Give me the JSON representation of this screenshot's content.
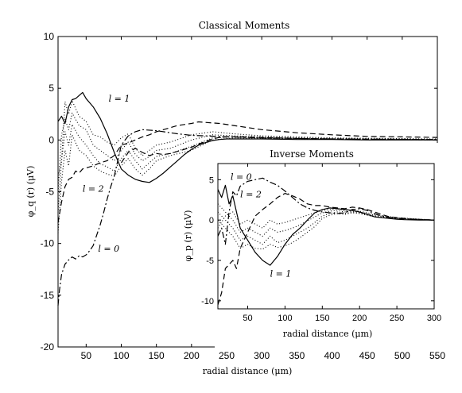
{
  "chart_data": [
    {
      "type": "line",
      "title": "Classical Moments",
      "xlabel": "radial distance (μm)",
      "ylabel": "φ_q (r) (μV)",
      "xlim": [
        10,
        550
      ],
      "ylim": [
        -20,
        10
      ],
      "xticks": [
        50,
        100,
        150,
        200,
        250,
        300,
        350,
        400,
        450,
        500,
        550
      ],
      "yticks": [
        -20,
        -15,
        -10,
        -5,
        0,
        5,
        10
      ],
      "grid": false,
      "annotations": [
        {
          "text": "l = 1",
          "x": 82,
          "y": 3.7
        },
        {
          "text": "l = 2",
          "x": 45,
          "y": -5.0
        },
        {
          "text": "l = 0",
          "x": 67,
          "y": -10.8
        }
      ],
      "series": [
        {
          "style": "solid",
          "x": [
            10,
            15,
            20,
            25,
            30,
            35,
            40,
            45,
            50,
            60,
            70,
            80,
            90,
            100,
            110,
            120,
            130,
            140,
            150,
            160,
            170,
            180,
            190,
            200,
            210,
            220,
            230,
            240,
            250,
            275,
            300,
            350,
            400,
            450,
            500,
            550
          ],
          "y": [
            1.8,
            2.3,
            1.6,
            3.2,
            3.9,
            4.0,
            4.3,
            4.6,
            4.0,
            3.2,
            2.1,
            0.6,
            -1.2,
            -2.8,
            -3.4,
            -3.8,
            -4.0,
            -4.1,
            -3.7,
            -3.2,
            -2.6,
            -2.0,
            -1.4,
            -0.9,
            -0.5,
            -0.25,
            -0.05,
            0.05,
            0.1,
            0.1,
            0.1,
            0.05,
            0.05,
            0.0,
            0.0,
            0.0
          ]
        },
        {
          "style": "dashdot",
          "x": [
            10,
            12,
            15,
            20,
            25,
            30,
            35,
            40,
            45,
            50,
            55,
            60,
            65,
            70,
            75,
            80,
            85,
            90,
            95,
            100,
            110,
            120,
            130,
            150,
            180,
            200,
            220,
            250,
            300,
            400,
            550
          ],
          "y": [
            -16.0,
            -14.5,
            -13.0,
            -12.0,
            -11.6,
            -11.3,
            -11.5,
            -11.2,
            -11.3,
            -11.1,
            -10.7,
            -10.2,
            -9.2,
            -8.2,
            -7.0,
            -5.7,
            -4.5,
            -3.5,
            -2.0,
            -0.5,
            0.4,
            0.8,
            1.0,
            0.9,
            0.6,
            0.45,
            0.4,
            0.3,
            0.2,
            0.1,
            0.05
          ]
        },
        {
          "style": "dashed",
          "x": [
            10,
            15,
            20,
            25,
            30,
            35,
            40,
            45,
            50,
            60,
            70,
            80,
            90,
            100,
            110,
            120,
            130,
            140,
            150,
            160,
            170,
            180,
            190,
            200,
            210,
            220,
            240,
            260,
            300,
            350,
            400,
            450,
            500,
            550
          ],
          "y": [
            -8.0,
            -6.0,
            -4.5,
            -3.8,
            -3.6,
            -3.0,
            -3.2,
            -2.8,
            -2.7,
            -2.5,
            -2.2,
            -2.0,
            -1.5,
            -0.5,
            -0.3,
            0.0,
            0.3,
            0.5,
            0.8,
            1.0,
            1.2,
            1.4,
            1.5,
            1.6,
            1.75,
            1.7,
            1.6,
            1.4,
            1.0,
            0.7,
            0.5,
            0.35,
            0.3,
            0.25
          ]
        },
        {
          "style": "dashed",
          "x": [
            100,
            110,
            120,
            130,
            140,
            150,
            160,
            170,
            180,
            190,
            200,
            210,
            220,
            230,
            240,
            250,
            270,
            300,
            350,
            400,
            450,
            500,
            550
          ],
          "y": [
            -2.2,
            -1.2,
            -0.8,
            -1.2,
            -1.5,
            -1.3,
            -1.4,
            -1.3,
            -1.1,
            -0.9,
            -0.7,
            -0.4,
            -0.15,
            0.1,
            0.25,
            0.3,
            0.3,
            0.25,
            0.15,
            0.1,
            0.05,
            0.05,
            0.0
          ]
        },
        {
          "style": "dotted",
          "x": [
            10,
            15,
            20,
            25,
            30,
            40,
            50,
            60,
            70,
            80,
            90,
            100,
            110,
            120,
            130,
            140,
            150,
            170,
            200,
            230,
            260,
            300,
            400,
            550
          ],
          "y": [
            -3.5,
            -2.0,
            3.7,
            2.5,
            3.8,
            2.3,
            1.8,
            0.5,
            0.3,
            -0.2,
            -0.5,
            0.2,
            0.6,
            -0.8,
            -1.5,
            -1.0,
            -0.5,
            -0.2,
            0.5,
            0.8,
            0.6,
            0.4,
            0.2,
            0.1
          ]
        },
        {
          "style": "dotted",
          "x": [
            10,
            15,
            20,
            25,
            30,
            40,
            50,
            60,
            70,
            80,
            90,
            100,
            110,
            120,
            130,
            140,
            150,
            170,
            200,
            230,
            260,
            300,
            400,
            550
          ],
          "y": [
            -5.0,
            0.5,
            2.0,
            1.0,
            2.6,
            1.4,
            1.0,
            -0.5,
            -1.0,
            -1.5,
            -2.0,
            -1.0,
            -0.2,
            -1.4,
            -2.0,
            -1.6,
            -1.0,
            -0.8,
            0.0,
            0.5,
            0.4,
            0.3,
            0.15,
            0.05
          ]
        },
        {
          "style": "dotted",
          "x": [
            10,
            15,
            20,
            25,
            30,
            40,
            50,
            60,
            70,
            80,
            90,
            100,
            110,
            120,
            130,
            140,
            150,
            170,
            200,
            230,
            260,
            300,
            400,
            550
          ],
          "y": [
            -7.0,
            -2.0,
            0.8,
            -0.5,
            1.5,
            0.3,
            -0.5,
            -1.5,
            -2.3,
            -2.6,
            -3.0,
            -1.8,
            -1.0,
            -2.0,
            -2.8,
            -2.2,
            -1.6,
            -1.3,
            -0.6,
            0.2,
            0.3,
            0.2,
            0.1,
            0.05
          ]
        },
        {
          "style": "dotted",
          "x": [
            10,
            15,
            20,
            25,
            30,
            40,
            50,
            60,
            70,
            80,
            90,
            100,
            110,
            120,
            130,
            140,
            150,
            170,
            200,
            230,
            260,
            300,
            400,
            550
          ],
          "y": [
            -9.0,
            -4.0,
            -1.0,
            -2.5,
            0.5,
            -1.0,
            -1.5,
            -2.5,
            -3.0,
            -3.3,
            -3.5,
            -2.5,
            -1.8,
            -2.8,
            -3.4,
            -2.8,
            -2.0,
            -1.5,
            -1.0,
            0.0,
            0.2,
            0.15,
            0.1,
            0.0
          ]
        }
      ]
    },
    {
      "type": "line",
      "title": "Inverse Moments",
      "xlabel": "radial distance (μm)",
      "ylabel": "φ_p (r) (μV)",
      "xlim": [
        10,
        300
      ],
      "ylim": [
        -11,
        7
      ],
      "xticks": [
        50,
        100,
        150,
        200,
        250,
        300
      ],
      "yticks": [
        -10,
        -5,
        0,
        5
      ],
      "grid": false,
      "annotations": [
        {
          "text": "l = 0",
          "x": 27,
          "y": 5.0
        },
        {
          "text": "l = 2",
          "x": 40,
          "y": 2.8
        },
        {
          "text": "l = 1",
          "x": 80,
          "y": -7.0
        }
      ],
      "series": [
        {
          "style": "solid",
          "x": [
            10,
            15,
            20,
            25,
            30,
            35,
            40,
            50,
            60,
            70,
            80,
            90,
            100,
            110,
            120,
            130,
            140,
            150,
            160,
            170,
            180,
            190,
            200,
            210,
            220,
            230,
            240,
            250,
            260,
            280,
            300
          ],
          "y": [
            3.8,
            2.8,
            4.3,
            2.0,
            3.0,
            1.0,
            -1.0,
            -2.5,
            -4.0,
            -5.0,
            -5.6,
            -4.5,
            -3.0,
            -1.8,
            -1.0,
            0.0,
            0.9,
            1.3,
            1.5,
            1.4,
            1.3,
            1.2,
            1.0,
            0.7,
            0.4,
            0.3,
            0.2,
            0.1,
            0.05,
            0.0,
            0.0
          ]
        },
        {
          "style": "dashdot",
          "x": [
            10,
            15,
            20,
            25,
            30,
            35,
            40,
            50,
            60,
            70,
            80,
            90,
            100,
            110,
            120,
            130,
            140,
            150,
            160,
            170,
            180,
            190,
            200,
            210,
            220,
            230,
            240,
            250,
            270,
            300
          ],
          "y": [
            -2.0,
            -1.0,
            -3.0,
            1.0,
            3.5,
            3.0,
            4.2,
            4.8,
            5.0,
            5.2,
            4.7,
            4.3,
            3.6,
            2.8,
            2.0,
            1.5,
            1.2,
            1.0,
            0.9,
            0.8,
            0.9,
            1.3,
            1.4,
            1.2,
            0.8,
            0.5,
            0.3,
            0.2,
            0.1,
            0.0
          ]
        },
        {
          "style": "dashed",
          "x": [
            10,
            15,
            20,
            25,
            30,
            35,
            40,
            45,
            50,
            55,
            60,
            70,
            80,
            90,
            100,
            110,
            120,
            130,
            140,
            150,
            160,
            170,
            180,
            190,
            200,
            210,
            220,
            230,
            240,
            250,
            270,
            300
          ],
          "y": [
            -10.5,
            -9.0,
            -6.0,
            -5.5,
            -5.0,
            -6.0,
            -3.5,
            -2.5,
            -1.5,
            -0.5,
            0.5,
            1.3,
            2.0,
            2.8,
            3.3,
            3.0,
            2.6,
            2.0,
            1.8,
            1.8,
            1.6,
            1.5,
            1.4,
            1.6,
            1.5,
            1.3,
            1.0,
            0.7,
            0.4,
            0.3,
            0.1,
            0.0
          ]
        },
        {
          "style": "dotted",
          "x": [
            10,
            20,
            30,
            40,
            50,
            60,
            70,
            80,
            90,
            100,
            110,
            120,
            130,
            140,
            150,
            160,
            170,
            180,
            190,
            200,
            220,
            250,
            300
          ],
          "y": [
            1.0,
            0.0,
            -1.0,
            -2.5,
            -2.0,
            -2.5,
            -3.0,
            -2.0,
            -2.8,
            -2.5,
            -2.0,
            -1.5,
            -1.0,
            -0.3,
            0.5,
            0.8,
            1.0,
            0.8,
            1.0,
            0.9,
            0.5,
            0.2,
            0.0
          ]
        },
        {
          "style": "dotted",
          "x": [
            10,
            20,
            30,
            40,
            50,
            60,
            70,
            80,
            90,
            100,
            110,
            120,
            130,
            140,
            150,
            160,
            170,
            180,
            190,
            200,
            220,
            250,
            300
          ],
          "y": [
            2.0,
            1.0,
            0.0,
            -1.5,
            -1.0,
            -1.5,
            -2.0,
            -1.0,
            -1.5,
            -1.3,
            -1.0,
            -0.6,
            -0.1,
            0.4,
            0.9,
            1.1,
            1.2,
            1.0,
            1.1,
            1.0,
            0.6,
            0.25,
            0.0
          ]
        },
        {
          "style": "dotted",
          "x": [
            10,
            20,
            30,
            40,
            50,
            60,
            70,
            80,
            90,
            100,
            110,
            120,
            130,
            140,
            150,
            160,
            170,
            180,
            190,
            200,
            220,
            250,
            300
          ],
          "y": [
            0.0,
            -1.0,
            -2.0,
            -3.5,
            -3.0,
            -3.5,
            -3.6,
            -3.0,
            -3.4,
            -3.2,
            -2.8,
            -2.2,
            -1.5,
            -0.8,
            0.2,
            0.6,
            0.8,
            0.7,
            0.9,
            0.8,
            0.4,
            0.15,
            0.0
          ]
        },
        {
          "style": "dotted",
          "x": [
            10,
            20,
            30,
            40,
            50,
            60,
            70,
            80,
            90,
            100,
            110,
            120,
            130,
            140,
            150,
            160,
            170,
            180,
            190,
            200,
            220,
            250,
            300
          ],
          "y": [
            -1.0,
            0.5,
            1.0,
            -0.5,
            0.0,
            -0.5,
            -1.0,
            0.0,
            -0.5,
            -0.3,
            0.0,
            0.3,
            0.6,
            0.9,
            1.2,
            1.3,
            1.4,
            1.2,
            1.2,
            1.1,
            0.7,
            0.3,
            0.0
          ]
        }
      ]
    }
  ]
}
